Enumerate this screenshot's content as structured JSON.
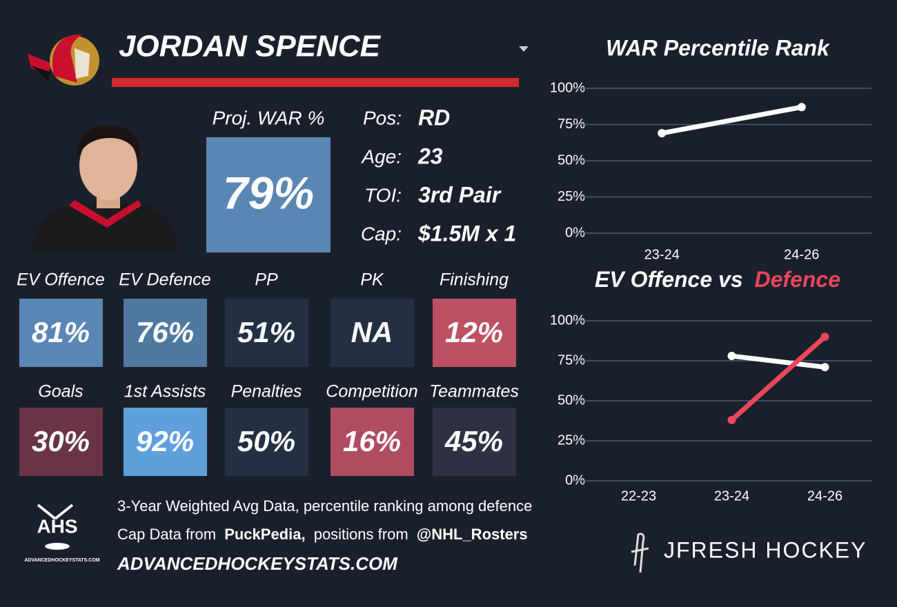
{
  "player": {
    "name": "JORDAN SPENCE",
    "proj_war_label": "Proj. WAR %",
    "proj_war": "79%",
    "proj_war_color": "#5a86b4",
    "info": [
      {
        "label": "Pos:",
        "value": "RD"
      },
      {
        "label": "Age:",
        "value": "23"
      },
      {
        "label": "TOI:",
        "value": "3rd Pair"
      },
      {
        "label": "Cap:",
        "value": "$1.5M x 1"
      }
    ]
  },
  "tiles": [
    {
      "label": "EV Offence",
      "value": "81%",
      "color": "#5a86b4"
    },
    {
      "label": "EV Defence",
      "value": "76%",
      "color": "#4f79a0"
    },
    {
      "label": "PP",
      "value": "51%",
      "color": "#243042"
    },
    {
      "label": "PK",
      "value": "NA",
      "color": "#243042"
    },
    {
      "label": "Finishing",
      "value": "12%",
      "color": "#be5064"
    },
    {
      "label": "Goals",
      "value": "30%",
      "color": "#6b3446"
    },
    {
      "label": "1st Assists",
      "value": "92%",
      "color": "#5fa0dc"
    },
    {
      "label": "Penalties",
      "value": "50%",
      "color": "#243042"
    },
    {
      "label": "Competition",
      "value": "16%",
      "color": "#b04c62"
    },
    {
      "label": "Teammates",
      "value": "45%",
      "color": "#2d3142"
    }
  ],
  "footer": {
    "line1": "3-Year Weighted Avg Data, percentile ranking among defence",
    "line2": [
      "Cap Data from",
      "PuckPedia,",
      "positions from",
      "@NHL_Rosters"
    ],
    "site": "ADVANCEDHOCKEYSTATS.COM",
    "logo": "AHS",
    "logo_sub": "ADVANCEDHOCKEYSTATS.COM",
    "brand": "JFRESH HOCKEY"
  },
  "chart_data": [
    {
      "type": "line",
      "title": "WAR Percentile Rank",
      "categories": [
        "23-24",
        "24-26"
      ],
      "series": [
        {
          "color": "#ffffff",
          "values": [
            69,
            87
          ]
        }
      ],
      "ylim": [
        0,
        100
      ],
      "yticks": [
        {
          "value": 0,
          "label": "0%"
        },
        {
          "value": 25,
          "label": "25%"
        },
        {
          "value": 50,
          "label": "50%"
        },
        {
          "value": 75,
          "label": "75%"
        },
        {
          "value": 100,
          "label": "100%"
        }
      ],
      "grid": true
    },
    {
      "type": "line",
      "title": "EV Offence vs",
      "title_highlight": "Defence",
      "title_highlight_color": "#e8475c",
      "categories": [
        "22-23",
        "23-24",
        "24-26"
      ],
      "series": [
        {
          "color": "#ffffff",
          "values": [
            null,
            78,
            71
          ]
        },
        {
          "color": "#e8475c",
          "values": [
            null,
            38,
            90
          ]
        }
      ],
      "ylim": [
        0,
        100
      ],
      "yticks": [
        {
          "value": 0,
          "label": "0%"
        },
        {
          "value": 25,
          "label": "25%"
        },
        {
          "value": 50,
          "label": "50%"
        },
        {
          "value": 75,
          "label": "75%"
        },
        {
          "value": 100,
          "label": "100%"
        }
      ],
      "grid": true
    }
  ]
}
